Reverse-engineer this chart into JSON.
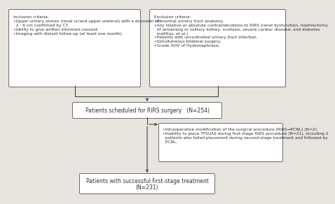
{
  "bg_color": "#e8e4df",
  "box_color": "#ffffff",
  "border_color": "#555555",
  "text_color": "#333333",
  "arrow_color": "#333333",
  "inclusion_title": "Inclusion criteria:",
  "inclusion_items": [
    "•Upper urinary stones (renal or/and upper ureteral) with a diameter of",
    "  2 - 6 cm confirmed by CT.",
    "•Ability to give written informed consent.",
    "•Imaging with distant follow-up (at least one month)."
  ],
  "exclusion_title": "Exclusion criteria:",
  "exclusion_items": [
    "•Abnormal urinary tract anatomy.",
    "•Any relative or absolute contraindications to RIRS (renal dysfunction, nephrectomy",
    "  of remaining or solitary kidney, scoliosis, severe cardiac disease, and diabetes",
    "  mellitus, et al.)",
    "•Patients with uncontrolled urinary tract infection.",
    "•Simultaneous bilateral surgery.",
    "•Grade III/IV of Hydronephrosis."
  ],
  "middle_box_text": "Patients scheduled for RIRS surgery   (N=254)",
  "side_box_items": [
    "•Intraoperative modification of the surgical procedure (RIRS→PCNL) (N=2).",
    "•Inability to place TFSUAS during first-stage RIRS procedure (N=21), including 2",
    "  patients who failed placement during second-stage treatment and followed by",
    "  PCNL."
  ],
  "bottom_box_line1": "Patients with successful first-stage treatment",
  "bottom_box_line2": "(N=231)",
  "fs_tiny": 4.2,
  "fs_small": 4.8,
  "fs_mid": 5.5
}
